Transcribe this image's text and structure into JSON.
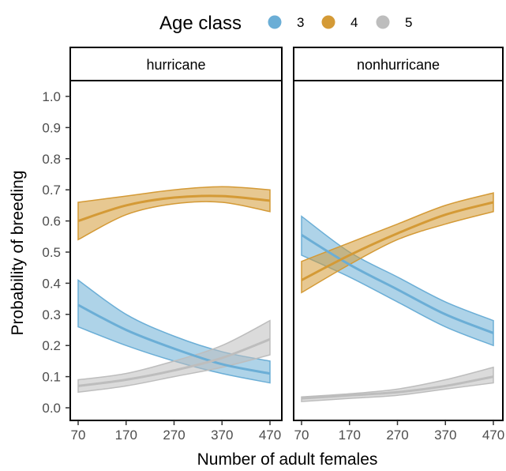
{
  "chart_data": {
    "type": "line",
    "legend": {
      "title": "Age class",
      "position": "top"
    },
    "xlabel": "Number of adult females",
    "ylabel": "Probability of breeding",
    "xlim": [
      70,
      470
    ],
    "ylim": [
      0,
      1
    ],
    "xticks": [
      "70",
      "170",
      "270",
      "370",
      "470"
    ],
    "yticks": [
      "0.0",
      "0.1",
      "0.2",
      "0.3",
      "0.4",
      "0.5",
      "0.6",
      "0.7",
      "0.8",
      "0.9",
      "1.0"
    ],
    "grid": false,
    "x": [
      70,
      170,
      270,
      370,
      470
    ],
    "facets": [
      {
        "label": "hurricane",
        "series": [
          {
            "name": "3",
            "color": "#6baed6",
            "mean": [
              0.33,
              0.25,
              0.19,
              0.14,
              0.11
            ],
            "lower": [
              0.26,
              0.2,
              0.15,
              0.11,
              0.08
            ],
            "upper": [
              0.41,
              0.3,
              0.23,
              0.18,
              0.15
            ]
          },
          {
            "name": "4",
            "color": "#d49a36",
            "mean": [
              0.6,
              0.65,
              0.675,
              0.68,
              0.665
            ],
            "lower": [
              0.54,
              0.62,
              0.655,
              0.66,
              0.63
            ],
            "upper": [
              0.66,
              0.68,
              0.7,
              0.71,
              0.7
            ]
          },
          {
            "name": "5",
            "color": "#bdbdbd",
            "mean": [
              0.07,
              0.09,
              0.12,
              0.16,
              0.22
            ],
            "lower": [
              0.05,
              0.07,
              0.1,
              0.13,
              0.17
            ],
            "upper": [
              0.09,
              0.11,
              0.15,
              0.2,
              0.28
            ]
          }
        ]
      },
      {
        "label": "nonhurricane",
        "series": [
          {
            "name": "3",
            "color": "#6baed6",
            "mean": [
              0.555,
              0.46,
              0.38,
              0.3,
              0.24
            ],
            "lower": [
              0.49,
              0.42,
              0.34,
              0.26,
              0.2
            ],
            "upper": [
              0.615,
              0.5,
              0.42,
              0.34,
              0.28
            ]
          },
          {
            "name": "4",
            "color": "#d49a36",
            "mean": [
              0.41,
              0.49,
              0.56,
              0.62,
              0.66
            ],
            "lower": [
              0.37,
              0.46,
              0.54,
              0.59,
              0.63
            ],
            "upper": [
              0.47,
              0.53,
              0.59,
              0.65,
              0.69
            ]
          },
          {
            "name": "5",
            "color": "#bdbdbd",
            "mean": [
              0.03,
              0.04,
              0.05,
              0.07,
              0.1
            ],
            "lower": [
              0.02,
              0.03,
              0.04,
              0.06,
              0.08
            ],
            "upper": [
              0.035,
              0.045,
              0.06,
              0.09,
              0.13
            ]
          }
        ]
      }
    ]
  }
}
